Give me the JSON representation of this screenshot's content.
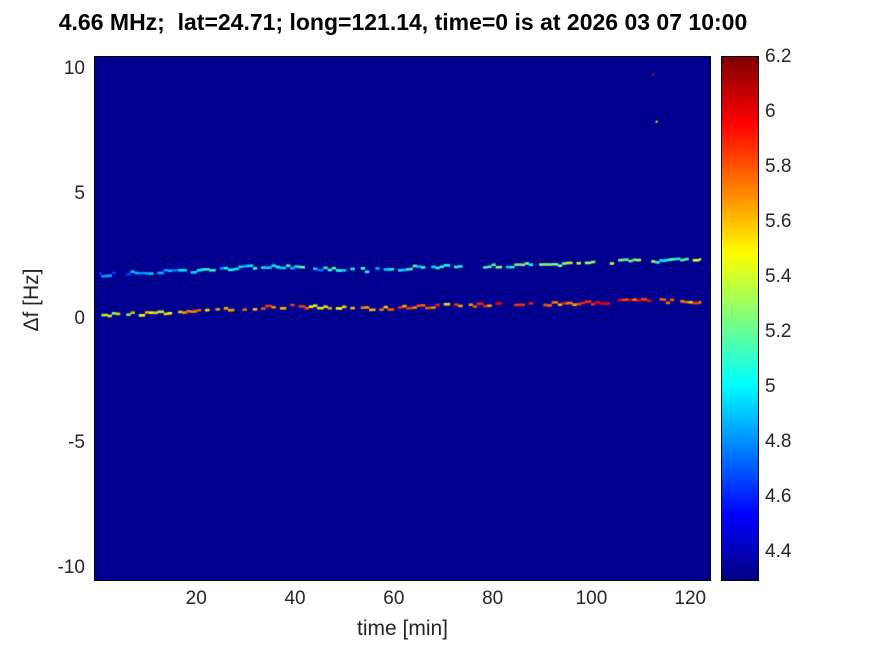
{
  "chart_data": {
    "type": "heatmap",
    "title": "4.66 MHz;  lat=24.71; long=121.14, time=0 is at 2026 03 07 10:00",
    "xlabel": "time [min]",
    "ylabel": "Δf [Hz]",
    "xlim": [
      -0.5,
      124
    ],
    "ylim": [
      -10.5,
      10.5
    ],
    "x_ticks": [
      20,
      40,
      60,
      80,
      100,
      120
    ],
    "y_ticks": [
      10,
      5,
      0,
      -5,
      -10
    ],
    "grid": false,
    "background_color": "#00008f",
    "colormap": "jet",
    "colorbar": {
      "min": 4.3,
      "max": 6.2,
      "ticks": [
        6.2,
        6,
        5.8,
        5.6,
        5.4,
        5.2,
        5,
        4.8,
        4.6,
        4.4
      ],
      "position": "right"
    },
    "series": [
      {
        "name": "upper-doppler-trace",
        "x": [
          0,
          5,
          10,
          15,
          20,
          25,
          30,
          35,
          40,
          45,
          50,
          55,
          60,
          65,
          70,
          75,
          80,
          85,
          90,
          95,
          100,
          105,
          110,
          115,
          120
        ],
        "y": [
          1.75,
          1.8,
          1.85,
          1.88,
          1.92,
          1.98,
          2.05,
          2.1,
          2.06,
          2.0,
          1.96,
          1.94,
          1.98,
          2.06,
          2.1,
          2.07,
          2.1,
          2.14,
          2.18,
          2.16,
          2.2,
          2.28,
          2.35,
          2.3,
          2.38
        ],
        "intensity": [
          4.8,
          4.85,
          4.9,
          4.9,
          4.95,
          5.0,
          4.9,
          5.0,
          5.1,
          4.95,
          5.0,
          5.05,
          5.1,
          5.0,
          5.1,
          5.15,
          5.2,
          5.1,
          5.2,
          5.25,
          5.3,
          5.2,
          5.3,
          5.2,
          5.3
        ]
      },
      {
        "name": "lower-doppler-trace",
        "x": [
          0,
          5,
          10,
          15,
          20,
          25,
          30,
          35,
          40,
          45,
          50,
          55,
          60,
          65,
          70,
          75,
          80,
          85,
          90,
          95,
          100,
          105,
          110,
          115,
          120
        ],
        "y": [
          0.12,
          0.15,
          0.18,
          0.22,
          0.28,
          0.35,
          0.42,
          0.45,
          0.48,
          0.44,
          0.4,
          0.38,
          0.42,
          0.46,
          0.5,
          0.52,
          0.55,
          0.56,
          0.58,
          0.6,
          0.63,
          0.68,
          0.78,
          0.7,
          0.66
        ],
        "intensity": [
          5.4,
          5.45,
          5.5,
          5.55,
          5.6,
          5.7,
          5.75,
          5.8,
          5.7,
          5.6,
          5.65,
          5.7,
          5.75,
          5.8,
          5.7,
          5.75,
          5.8,
          5.85,
          5.8,
          5.75,
          5.8,
          5.9,
          5.85,
          5.8,
          5.75
        ]
      }
    ],
    "specks": [
      {
        "x": 112.5,
        "y": 9.8,
        "value": 6.0
      },
      {
        "x": 113.2,
        "y": 7.9,
        "value": 5.5
      }
    ]
  }
}
